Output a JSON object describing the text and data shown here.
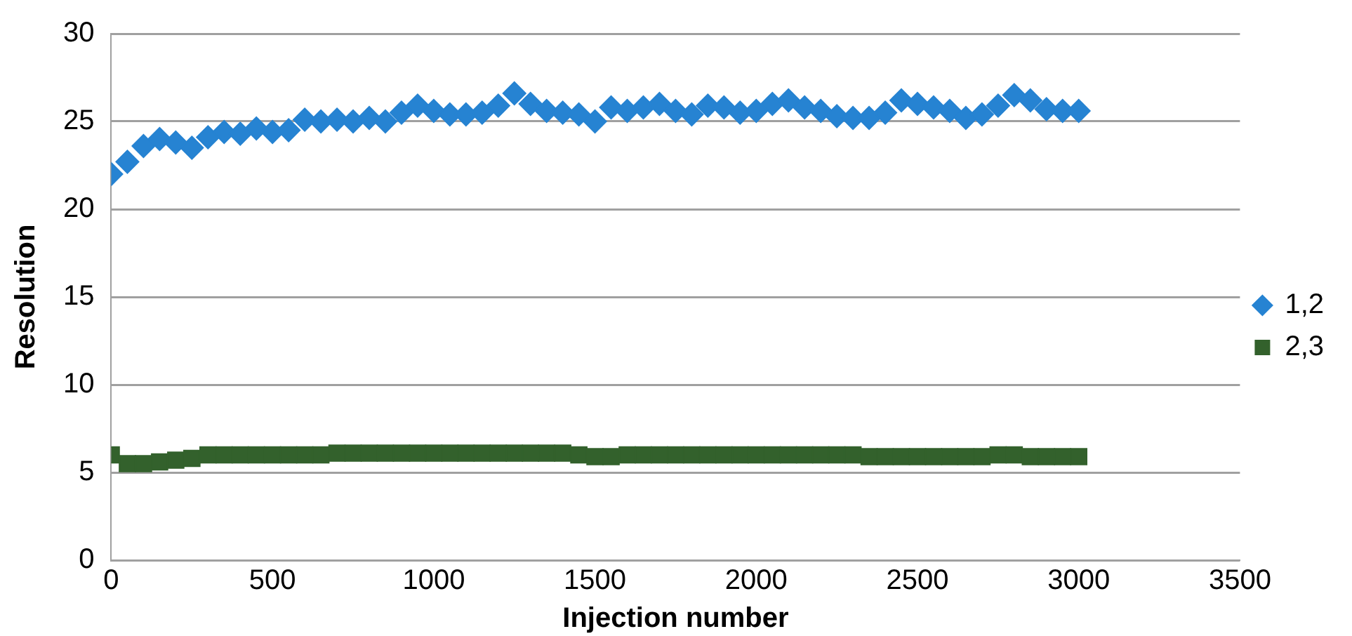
{
  "chart_data": {
    "type": "scatter",
    "xlabel": "Injection number",
    "ylabel": "Resolution",
    "xlim": [
      0,
      3500
    ],
    "xticks": [
      0,
      500,
      1000,
      1500,
      2000,
      2500,
      3000,
      3500
    ],
    "ylim": [
      0,
      30
    ],
    "yticks": [
      0,
      5,
      10,
      15,
      20,
      25,
      30
    ],
    "grid": "y",
    "legend": "right",
    "x": [
      0,
      50,
      100,
      150,
      200,
      250,
      300,
      350,
      400,
      450,
      500,
      550,
      600,
      650,
      700,
      750,
      800,
      850,
      900,
      950,
      1000,
      1050,
      1100,
      1150,
      1200,
      1250,
      1300,
      1350,
      1400,
      1450,
      1500,
      1550,
      1600,
      1650,
      1700,
      1750,
      1800,
      1850,
      1900,
      1950,
      2000,
      2050,
      2100,
      2150,
      2200,
      2250,
      2300,
      2350,
      2400,
      2450,
      2500,
      2550,
      2600,
      2650,
      2700,
      2750,
      2800,
      2850,
      2900,
      2950,
      3000
    ],
    "series": [
      {
        "name": "1,2",
        "color": "#2683d2",
        "marker": "diamond",
        "values": [
          22.0,
          22.7,
          23.6,
          24.0,
          23.8,
          23.5,
          24.1,
          24.4,
          24.3,
          24.6,
          24.4,
          24.5,
          25.1,
          25.0,
          25.1,
          25.0,
          25.2,
          25.0,
          25.5,
          25.9,
          25.6,
          25.4,
          25.4,
          25.5,
          25.9,
          26.6,
          26.0,
          25.6,
          25.5,
          25.4,
          25.0,
          25.8,
          25.6,
          25.8,
          26.0,
          25.6,
          25.4,
          25.9,
          25.8,
          25.5,
          25.6,
          26.0,
          26.2,
          25.8,
          25.6,
          25.3,
          25.2,
          25.2,
          25.5,
          26.2,
          26.0,
          25.8,
          25.6,
          25.2,
          25.4,
          25.9,
          26.5,
          26.2,
          25.7,
          25.6,
          25.6
        ]
      },
      {
        "name": "2,3",
        "color": "#33612c",
        "marker": "square",
        "values": [
          6.0,
          5.5,
          5.5,
          5.6,
          5.7,
          5.8,
          6.0,
          6.0,
          6.0,
          6.0,
          6.0,
          6.0,
          6.0,
          6.0,
          6.1,
          6.1,
          6.1,
          6.1,
          6.1,
          6.1,
          6.1,
          6.1,
          6.1,
          6.1,
          6.1,
          6.1,
          6.1,
          6.1,
          6.1,
          6.0,
          5.9,
          5.9,
          6.0,
          6.0,
          6.0,
          6.0,
          6.0,
          6.0,
          6.0,
          6.0,
          6.0,
          6.0,
          6.0,
          6.0,
          6.0,
          6.0,
          6.0,
          5.9,
          5.9,
          5.9,
          5.9,
          5.9,
          5.9,
          5.9,
          5.9,
          6.0,
          6.0,
          5.9,
          5.9,
          5.9,
          5.9
        ]
      }
    ]
  }
}
